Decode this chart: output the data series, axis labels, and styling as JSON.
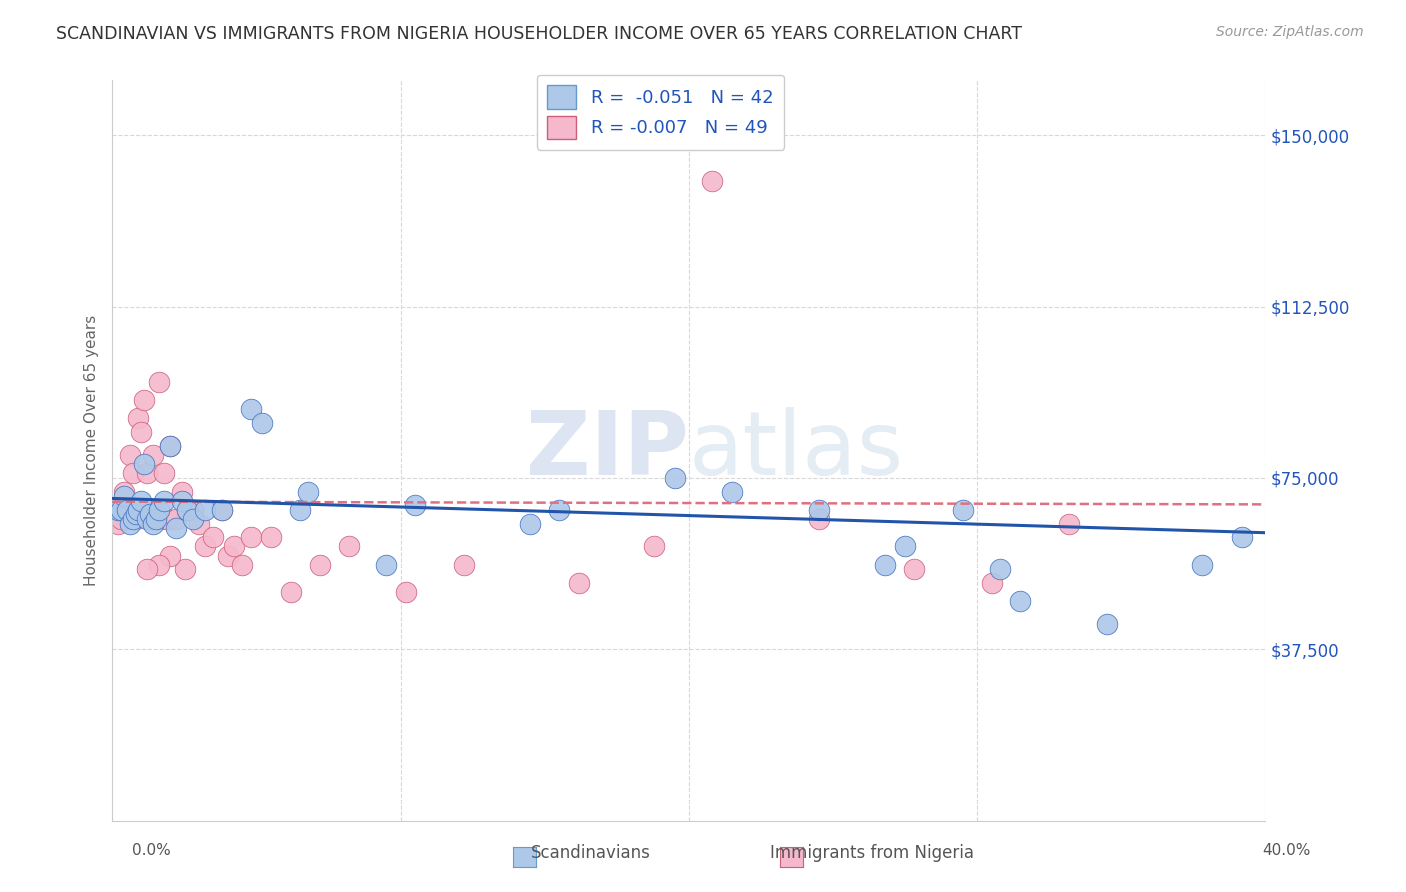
{
  "title": "SCANDINAVIAN VS IMMIGRANTS FROM NIGERIA HOUSEHOLDER INCOME OVER 65 YEARS CORRELATION CHART",
  "source": "Source: ZipAtlas.com",
  "ylabel": "Householder Income Over 65 years",
  "legend_label_1": "Scandinavians",
  "legend_label_2": "Immigrants from Nigeria",
  "watermark_zip": "ZIP",
  "watermark_atlas": "atlas",
  "color_scandinavian": "#adc8e8",
  "color_nigeria": "#f5b8cc",
  "color_line_scandinavian": "#2255aa",
  "color_line_nigeria": "#e07080",
  "background_color": "#ffffff",
  "grid_color": "#d8d8d8",
  "xlim": [
    0.0,
    0.4
  ],
  "ylim": [
    0,
    162000
  ],
  "scandinavian_x": [
    0.002,
    0.003,
    0.004,
    0.005,
    0.006,
    0.007,
    0.008,
    0.009,
    0.01,
    0.011,
    0.012,
    0.013,
    0.014,
    0.015,
    0.016,
    0.018,
    0.02,
    0.022,
    0.024,
    0.026,
    0.028,
    0.032,
    0.038,
    0.048,
    0.052,
    0.065,
    0.068,
    0.095,
    0.105,
    0.145,
    0.155,
    0.195,
    0.215,
    0.245,
    0.268,
    0.275,
    0.295,
    0.308,
    0.315,
    0.345,
    0.378,
    0.392
  ],
  "scandinavian_y": [
    68000,
    68000,
    71000,
    68000,
    65000,
    66000,
    67000,
    68000,
    70000,
    78000,
    66000,
    67000,
    65000,
    66000,
    68000,
    70000,
    82000,
    64000,
    70000,
    68000,
    66000,
    68000,
    68000,
    90000,
    87000,
    68000,
    72000,
    56000,
    69000,
    65000,
    68000,
    75000,
    72000,
    68000,
    56000,
    60000,
    68000,
    55000,
    48000,
    43000,
    56000,
    62000
  ],
  "nigeria_x": [
    0.001,
    0.002,
    0.003,
    0.004,
    0.005,
    0.006,
    0.007,
    0.008,
    0.009,
    0.01,
    0.011,
    0.012,
    0.013,
    0.014,
    0.015,
    0.016,
    0.017,
    0.018,
    0.019,
    0.02,
    0.022,
    0.024,
    0.026,
    0.028,
    0.03,
    0.032,
    0.035,
    0.038,
    0.04,
    0.042,
    0.045,
    0.048,
    0.055,
    0.062,
    0.072,
    0.082,
    0.102,
    0.122,
    0.162,
    0.188,
    0.208,
    0.245,
    0.278,
    0.305,
    0.332,
    0.025,
    0.02,
    0.016,
    0.012
  ],
  "nigeria_y": [
    67000,
    65000,
    66000,
    72000,
    68000,
    80000,
    76000,
    66000,
    88000,
    85000,
    92000,
    76000,
    66000,
    80000,
    68000,
    96000,
    66000,
    76000,
    66000,
    82000,
    66000,
    72000,
    68000,
    68000,
    65000,
    60000,
    62000,
    68000,
    58000,
    60000,
    56000,
    62000,
    62000,
    50000,
    56000,
    60000,
    50000,
    56000,
    52000,
    60000,
    140000,
    66000,
    55000,
    52000,
    65000,
    55000,
    58000,
    56000,
    55000
  ],
  "scan_trend_x": [
    0.0,
    0.4
  ],
  "scan_trend_y": [
    70500,
    63000
  ],
  "nig_trend_x": [
    0.0,
    0.4
  ],
  "nig_trend_y": [
    69800,
    69200
  ]
}
